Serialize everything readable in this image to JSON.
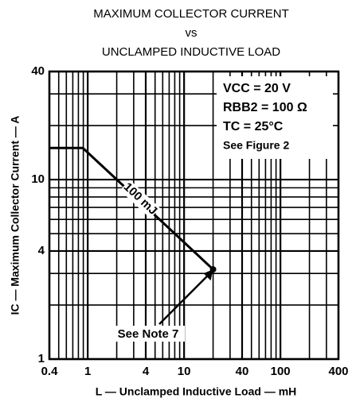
{
  "chart_data": {
    "type": "line",
    "title": [
      "MAXIMUM COLLECTOR CURRENT",
      "vs",
      "UNCLAMPED INDUCTIVE LOAD"
    ],
    "xlabel": "L — Unclamped Inductive Load — mH",
    "ylabel": "IC — Maximum Collector Current — A",
    "xscale": "log",
    "yscale": "log",
    "xlim": [
      0.4,
      400
    ],
    "ylim": [
      1,
      40
    ],
    "xticks": [
      0.4,
      1,
      4,
      10,
      40,
      100,
      400
    ],
    "yticks": [
      1,
      4,
      10,
      40
    ],
    "xgrid": [
      0.5,
      0.6,
      0.7,
      0.8,
      0.9,
      2,
      3,
      5,
      6,
      7,
      8,
      9,
      20,
      30,
      50,
      60,
      70,
      80,
      90,
      200,
      300
    ],
    "ygrid": [
      2,
      3,
      5,
      6,
      7,
      8,
      9,
      20,
      30
    ],
    "grid": true,
    "series": [
      {
        "color": "#000000",
        "x": [
          0.4,
          0.89,
          20
        ],
        "values": [
          15,
          15,
          3.16
        ]
      }
    ],
    "annotations": {
      "line_label": "100 mJ",
      "note": "See Note 7",
      "conditions": [
        "VCC = 20 V",
        "RBB2 = 100 Ω",
        "TC = 25°C",
        "See Figure 2"
      ]
    }
  }
}
